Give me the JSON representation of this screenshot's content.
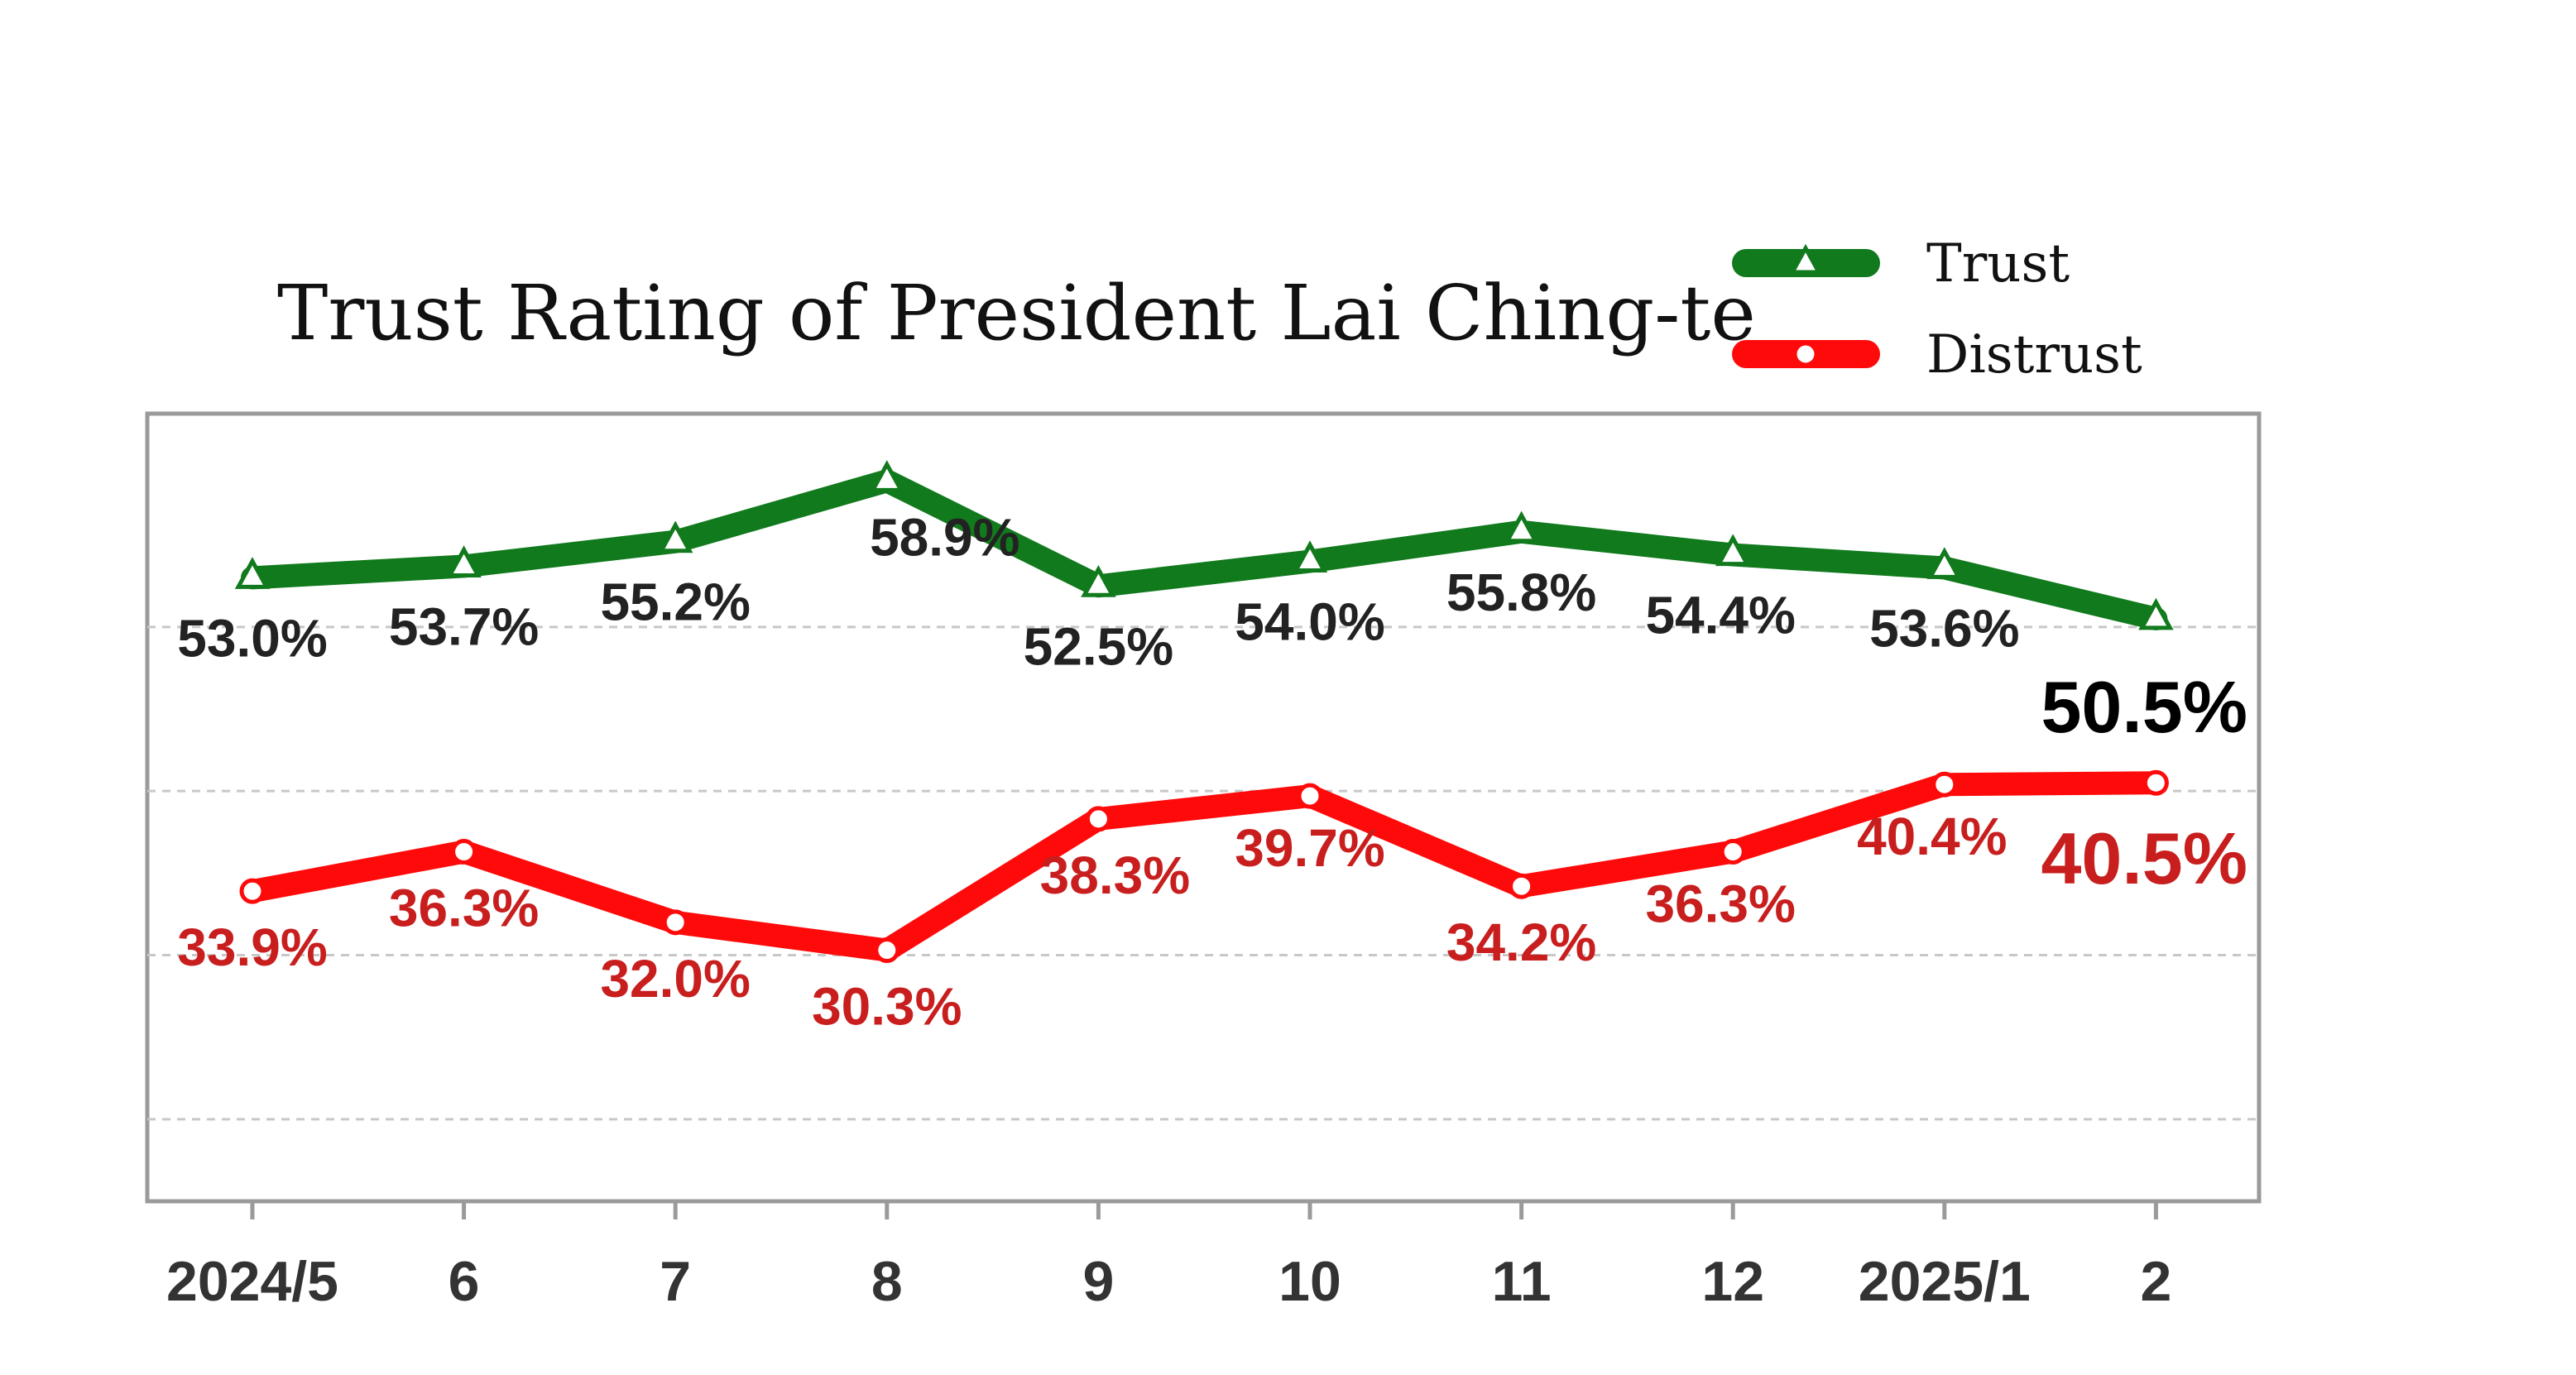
{
  "chart_data": {
    "type": "line",
    "title": "Trust Rating of President Lai Ching-te",
    "categories": [
      "2024/5",
      "6",
      "7",
      "8",
      "9",
      "10",
      "11",
      "12",
      "2025/1",
      "2"
    ],
    "series": [
      {
        "name": "Trust",
        "values": [
          53.0,
          53.7,
          55.2,
          58.9,
          52.5,
          54.0,
          55.8,
          54.4,
          53.6,
          50.5
        ],
        "labels": [
          "53.0%",
          "53.7%",
          "55.2%",
          "58.9%",
          "52.5%",
          "54.0%",
          "55.8%",
          "54.4%",
          "53.6%",
          "50.5%"
        ],
        "color": "#117a1d",
        "label_color": "#222222",
        "marker": "triangle"
      },
      {
        "name": "Distrust",
        "values": [
          33.9,
          36.3,
          32.0,
          30.3,
          38.3,
          39.7,
          34.2,
          36.3,
          40.4,
          40.5
        ],
        "labels": [
          "33.9%",
          "36.3%",
          "32.0%",
          "30.3%",
          "38.3%",
          "39.7%",
          "34.2%",
          "36.3%",
          "40.4%",
          "40.5%"
        ],
        "color": "#ff0a0a",
        "label_color": "#c81e1e",
        "marker": "circle"
      }
    ],
    "xlabel": "",
    "ylabel": "",
    "ylim": [
      15,
      63
    ],
    "grid": true,
    "legend": "top-right"
  }
}
